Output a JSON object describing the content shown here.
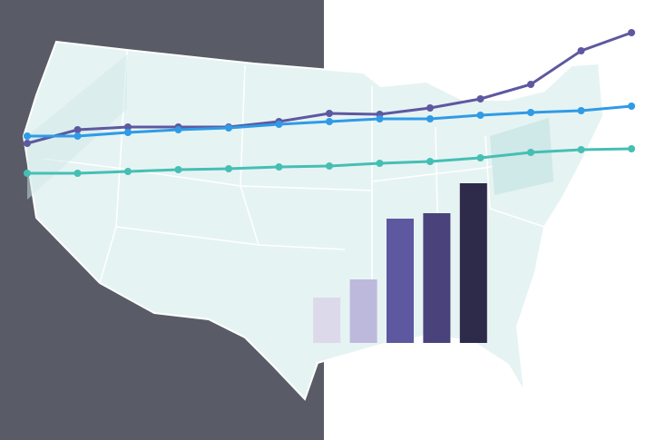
{
  "chart_data": [
    {
      "type": "line",
      "categories": [
        null,
        null,
        null,
        null,
        null,
        null,
        null,
        null,
        null,
        null,
        null,
        null,
        null
      ],
      "series": [
        {
          "color": "#5e58a0",
          "values": [
            327,
            342,
            345,
            345,
            345,
            351,
            360,
            359,
            366,
            376,
            392,
            429,
            449
          ]
        },
        {
          "color": "#2f9be6",
          "values": [
            335,
            335,
            339,
            342,
            344,
            348,
            351,
            354,
            354,
            358,
            361,
            363,
            368
          ]
        },
        {
          "color": "#45bfb4",
          "values": [
            294,
            294,
            296,
            298,
            299,
            301,
            302,
            305,
            307,
            311,
            317,
            320,
            321
          ]
        }
      ],
      "ylim": [
        0,
        485
      ]
    },
    {
      "type": "bar",
      "categories": [
        null,
        null,
        null,
        null,
        null
      ],
      "values": [
        50,
        70,
        137,
        143,
        176
      ],
      "colors": [
        "#dcdaea",
        "#bdb9dc",
        "#5e58a0",
        "#4a437b",
        "#2e2a4a"
      ],
      "ylim": [
        0,
        378
      ]
    }
  ]
}
